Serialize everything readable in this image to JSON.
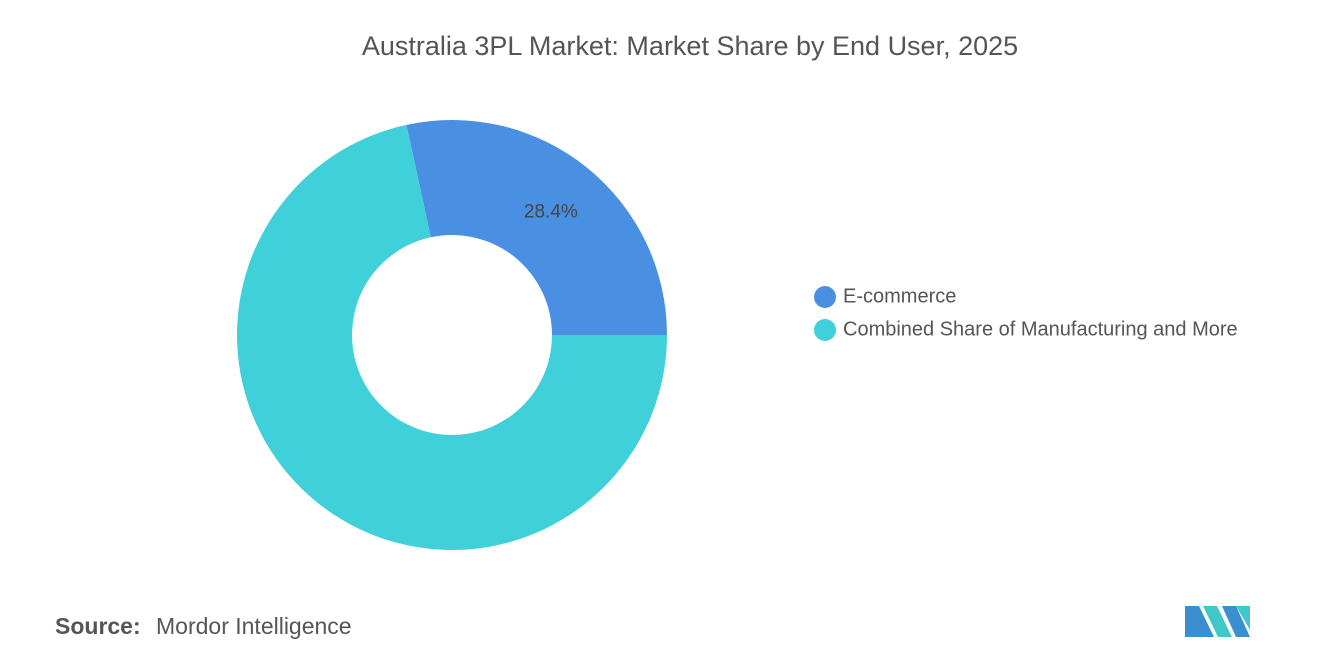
{
  "chart_data": {
    "type": "donut",
    "title": "Australia 3PL Market: Market Share by End User, 2025",
    "categories": [
      "E-commerce",
      "Combined Share of Manufacturing and More"
    ],
    "values": [
      28.4,
      71.6
    ],
    "value_labels": [
      "28.4%",
      null
    ],
    "colors": [
      "#4a90e2",
      "#40d0da"
    ],
    "legend": "right"
  },
  "source": {
    "label": "Source:",
    "text": "Mordor Intelligence"
  }
}
